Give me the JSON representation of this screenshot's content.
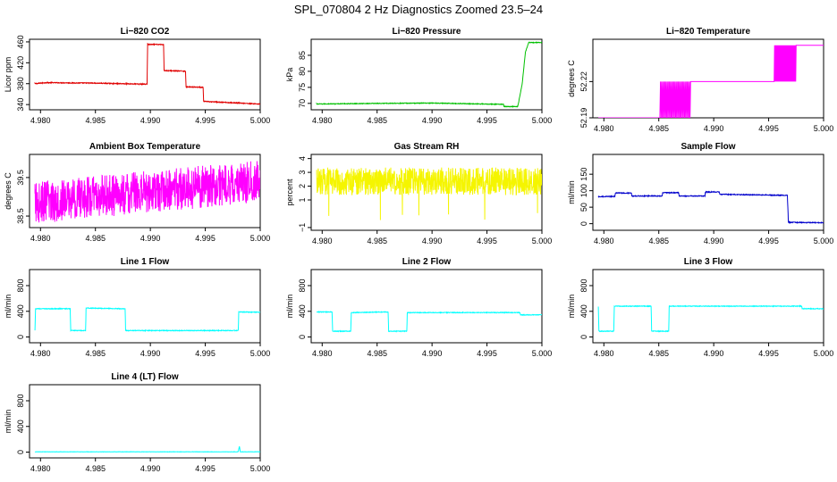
{
  "figure_title": "SPL_070804  2 Hz Diagnostics Zoomed 23.5–24",
  "colors": {
    "red": "#e00000",
    "green": "#00c000",
    "magenta": "#ff00ff",
    "yellow": "#f5f500",
    "blue": "#0000cc",
    "cyan": "#00ffff"
  },
  "chart_data": [
    {
      "type": "line",
      "title": "Li−820 CO2",
      "ylabel": "Licor ppm",
      "color": "red",
      "xlim": [
        4.979,
        5.0
      ],
      "ylim": [
        330,
        465
      ],
      "xticks": [
        4.98,
        4.985,
        4.99,
        4.995,
        5.0
      ],
      "xtick_labels": [
        "4.980",
        "4.985",
        "4.990",
        "4.995",
        "5.000"
      ],
      "yticks": [
        340,
        380,
        420,
        460
      ],
      "ytick_labels": [
        "340",
        "380",
        "420",
        "460"
      ],
      "noise": 0.8,
      "x": [
        4.9795,
        4.9805,
        4.985,
        4.9897,
        4.98975,
        4.9912,
        4.99125,
        4.9932,
        4.99325,
        4.9948,
        4.99485,
        4.998,
        5.0
      ],
      "y": [
        380,
        382,
        381,
        379,
        455,
        455,
        405,
        404,
        374,
        373,
        346,
        343,
        341
      ]
    },
    {
      "type": "line",
      "title": "Li−820 Pressure",
      "ylabel": "kPa",
      "color": "green",
      "xlim": [
        4.979,
        5.0
      ],
      "ylim": [
        68,
        90
      ],
      "xticks": [
        4.98,
        4.985,
        4.99,
        4.995,
        5.0
      ],
      "xtick_labels": [
        "4.980",
        "4.985",
        "4.990",
        "4.995",
        "5.000"
      ],
      "yticks": [
        70,
        75,
        80,
        85
      ],
      "ytick_labels": [
        "70",
        "75",
        "80",
        "85"
      ],
      "noise": 0.1,
      "x": [
        4.9795,
        4.985,
        4.99,
        4.9965,
        4.99655,
        4.9978,
        4.9982,
        4.9985,
        4.9988,
        5.0
      ],
      "y": [
        69.8,
        70.0,
        70.1,
        69.7,
        69.0,
        69.0,
        76,
        86,
        89,
        89
      ]
    },
    {
      "type": "line",
      "title": "Li−820 Temperature",
      "ylabel": "degrees C",
      "color": "magenta",
      "xlim": [
        4.979,
        5.0
      ],
      "ylim": [
        52.19,
        52.255
      ],
      "xticks": [
        4.98,
        4.985,
        4.99,
        4.995,
        5.0
      ],
      "xtick_labels": [
        "4.980",
        "4.985",
        "4.990",
        "4.995",
        "5.000"
      ],
      "yticks": [
        52.19,
        52.22
      ],
      "ytick_labels": [
        "52.19",
        "52.22"
      ],
      "levels": [
        52.19,
        52.22,
        52.25
      ],
      "steps": [
        {
          "x0": 4.9795,
          "x1": 4.9851,
          "level": 0
        },
        {
          "x0": 4.9851,
          "x1": 4.9879,
          "level": "flicker01"
        },
        {
          "x0": 4.9879,
          "x1": 4.9955,
          "level": 1
        },
        {
          "x0": 4.9955,
          "x1": 4.9975,
          "level": "flicker12"
        },
        {
          "x0": 4.9975,
          "x1": 5.0,
          "level": 2
        }
      ]
    },
    {
      "type": "line",
      "title": "Ambient Box Temperature",
      "ylabel": "degrees C",
      "color": "magenta",
      "xlim": [
        4.979,
        5.0
      ],
      "ylim": [
        38.2,
        40.1
      ],
      "xticks": [
        4.98,
        4.985,
        4.99,
        4.995,
        5.0
      ],
      "xtick_labels": [
        "4.980",
        "4.985",
        "4.990",
        "4.995",
        "5.000"
      ],
      "yticks": [
        38.5,
        39.5
      ],
      "ytick_labels": [
        "38.5",
        "39.5"
      ],
      "noise": 0.55,
      "x": [
        4.9795,
        5.0
      ],
      "y": [
        38.85,
        39.4
      ]
    },
    {
      "type": "line",
      "title": "Gas Stream RH",
      "ylabel": "percent",
      "color": "yellow",
      "xlim": [
        4.979,
        5.0
      ],
      "ylim": [
        -1.2,
        4.3
      ],
      "xticks": [
        4.98,
        4.985,
        4.99,
        4.995,
        5.0
      ],
      "xtick_labels": [
        "4.980",
        "4.985",
        "4.990",
        "4.995",
        "5.000"
      ],
      "yticks": [
        -1,
        1,
        2,
        3,
        4
      ],
      "ytick_labels": [
        "−1",
        "1",
        "2",
        "3",
        "4"
      ],
      "noise": 1.0,
      "x": [
        4.9795,
        5.0
      ],
      "y": [
        2.35,
        2.35
      ]
    },
    {
      "type": "line",
      "title": "Sample Flow",
      "ylabel": "ml/min",
      "color": "blue",
      "xlim": [
        4.979,
        5.0
      ],
      "ylim": [
        -20,
        210
      ],
      "xticks": [
        4.98,
        4.985,
        4.99,
        4.995,
        5.0
      ],
      "xtick_labels": [
        "4.980",
        "4.985",
        "4.990",
        "4.995",
        "5.000"
      ],
      "yticks": [
        0,
        50,
        100,
        150
      ],
      "ytick_labels": [
        "0",
        "50",
        "100",
        "150"
      ],
      "noise": 1.2,
      "x": [
        4.9795,
        4.981,
        4.98105,
        4.9825,
        4.98255,
        4.9853,
        4.98535,
        4.9868,
        4.98685,
        4.9892,
        4.98925,
        4.9905,
        4.99055,
        4.9967,
        4.9968,
        5.0
      ],
      "y": [
        82,
        83,
        93,
        93,
        84,
        84,
        94,
        94,
        84,
        84,
        96,
        96,
        89,
        86,
        4,
        3
      ]
    },
    {
      "type": "line",
      "title": "Line 1 Flow",
      "ylabel": "ml/min",
      "color": "cyan",
      "xlim": [
        4.979,
        5.0
      ],
      "ylim": [
        -90,
        1050
      ],
      "xticks": [
        4.98,
        4.985,
        4.99,
        4.995,
        5.0
      ],
      "xtick_labels": [
        "4.980",
        "4.985",
        "4.990",
        "4.995",
        "5.000"
      ],
      "yticks": [
        0,
        400,
        800
      ],
      "ytick_labels": [
        "0",
        "400",
        "800"
      ],
      "noise": 5,
      "x": [
        4.9795,
        4.97955,
        4.9827,
        4.98275,
        4.9841,
        4.98415,
        4.9877,
        4.98775,
        4.998,
        4.99805,
        5.0
      ],
      "y": [
        100,
        440,
        440,
        100,
        100,
        450,
        440,
        100,
        100,
        390,
        385
      ]
    },
    {
      "type": "line",
      "title": "Line 2 Flow",
      "ylabel": "ml/min",
      "color": "cyan",
      "xlim": [
        4.979,
        5.0
      ],
      "ylim": [
        -90,
        1050
      ],
      "xticks": [
        4.98,
        4.985,
        4.99,
        4.995,
        5.0
      ],
      "xtick_labels": [
        "4.980",
        "4.985",
        "4.990",
        "4.995",
        "5.000"
      ],
      "yticks": [
        0,
        400,
        800
      ],
      "ytick_labels": [
        "0",
        "400",
        "800"
      ],
      "noise": 5,
      "x": [
        4.9795,
        4.9809,
        4.98095,
        4.9826,
        4.98265,
        4.986,
        4.98605,
        4.9877,
        4.98775,
        4.998,
        4.99805,
        5.0
      ],
      "y": [
        390,
        390,
        90,
        90,
        380,
        390,
        90,
        90,
        380,
        380,
        345,
        345
      ]
    },
    {
      "type": "line",
      "title": "Line 3 Flow",
      "ylabel": "ml/min",
      "color": "cyan",
      "xlim": [
        4.979,
        5.0
      ],
      "ylim": [
        -90,
        1050
      ],
      "xticks": [
        4.98,
        4.985,
        4.99,
        4.995,
        5.0
      ],
      "xtick_labels": [
        "4.980",
        "4.985",
        "4.990",
        "4.995",
        "5.000"
      ],
      "yticks": [
        0,
        400,
        800
      ],
      "ytick_labels": [
        "0",
        "400",
        "800"
      ],
      "noise": 5,
      "x": [
        4.9795,
        4.97955,
        4.9809,
        4.98095,
        4.9843,
        4.98435,
        4.9859,
        4.98595,
        4.998,
        4.99805,
        5.0
      ],
      "y": [
        470,
        90,
        90,
        480,
        480,
        90,
        90,
        480,
        480,
        440,
        440
      ]
    },
    {
      "type": "line",
      "title": "Line 4 (LT) Flow",
      "ylabel": "ml/min",
      "color": "cyan",
      "xlim": [
        4.979,
        5.0
      ],
      "ylim": [
        -90,
        1050
      ],
      "xticks": [
        4.98,
        4.985,
        4.99,
        4.995,
        5.0
      ],
      "xtick_labels": [
        "4.980",
        "4.985",
        "4.990",
        "4.995",
        "5.000"
      ],
      "yticks": [
        0,
        400,
        800
      ],
      "ytick_labels": [
        "0",
        "400",
        "800"
      ],
      "noise": 2,
      "x": [
        4.9795,
        4.998,
        4.9981,
        4.9982,
        5.0
      ],
      "y": [
        5,
        5,
        90,
        5,
        5
      ]
    }
  ]
}
